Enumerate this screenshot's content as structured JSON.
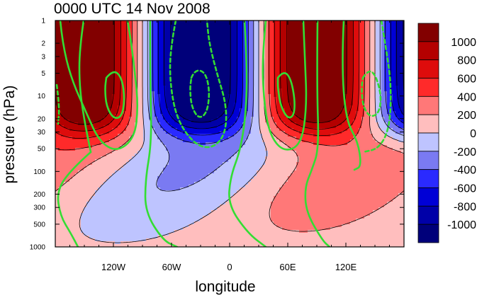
{
  "chart_data": {
    "type": "heatmap",
    "title": "0000 UTC 14 Nov 2008",
    "xlabel": "longitude",
    "ylabel": "pressure (hPa)",
    "x_ticks": [
      {
        "lon": -120,
        "label": "120W"
      },
      {
        "lon": -60,
        "label": "60W"
      },
      {
        "lon": 0,
        "label": "0"
      },
      {
        "lon": 60,
        "label": "60E"
      },
      {
        "lon": 120,
        "label": "120E"
      }
    ],
    "y_ticks": [
      {
        "p": 1,
        "label": "1"
      },
      {
        "p": 2,
        "label": "2"
      },
      {
        "p": 3,
        "label": "3"
      },
      {
        "p": 5,
        "label": "5"
      },
      {
        "p": 10,
        "label": "10"
      },
      {
        "p": 20,
        "label": "20"
      },
      {
        "p": 30,
        "label": "30"
      },
      {
        "p": 50,
        "label": "50"
      },
      {
        "p": 100,
        "label": "100"
      },
      {
        "p": 200,
        "label": "200"
      },
      {
        "p": 300,
        "label": "300"
      },
      {
        "p": 500,
        "label": "500"
      },
      {
        "p": 1000,
        "label": "1000"
      }
    ],
    "xlim": [
      -180,
      180
    ],
    "ylim_hpa": [
      1000,
      1
    ],
    "y_scale": "log",
    "colorbar": {
      "labels": [
        "1000",
        "800",
        "600",
        "400",
        "200",
        "0",
        "-200",
        "-400",
        "-600",
        "-800",
        "-1000"
      ],
      "colors": [
        "#820000",
        "#b40000",
        "#de0c0c",
        "#ff2a2a",
        "#ff7878",
        "#ffbebe",
        "#bec4ff",
        "#7a7af2",
        "#2a2aff",
        "#0000d6",
        "#0000a8",
        "#00007a"
      ]
    },
    "overlay_contours": {
      "color": "#33dd33",
      "style": [
        "solid",
        "dashed"
      ]
    },
    "field_levels": [
      -1000,
      -800,
      -600,
      -400,
      -200,
      0,
      200,
      400,
      600,
      800,
      1000
    ]
  }
}
